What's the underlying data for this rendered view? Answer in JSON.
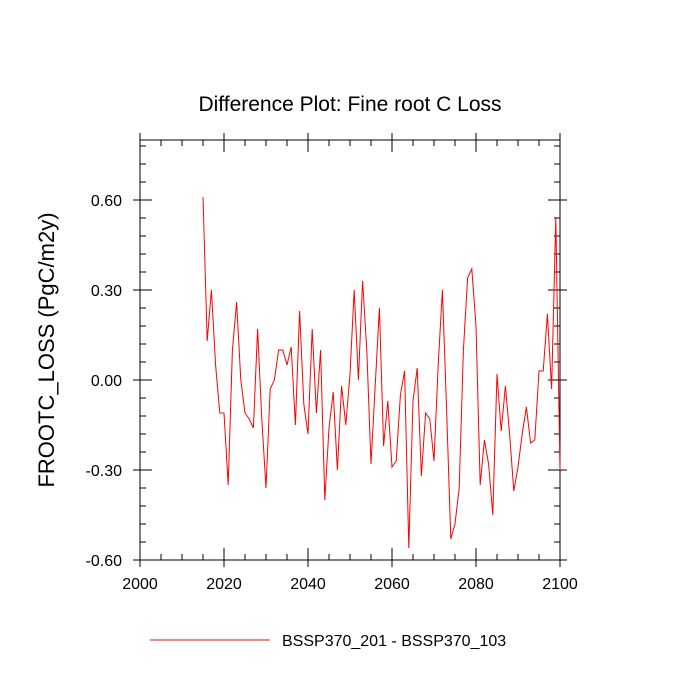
{
  "chart_data": {
    "type": "line",
    "title": "Difference Plot: Fine root C Loss",
    "xlabel": "",
    "ylabel": "FROOTC_LOSS  (PgC/m2y)",
    "xlim": [
      2000,
      2100
    ],
    "ylim": [
      -0.6,
      0.8
    ],
    "x_ticks": [
      2000,
      2020,
      2040,
      2060,
      2080,
      2100
    ],
    "x_tick_labels": [
      "2000",
      "2020",
      "2040",
      "2060",
      "2080",
      "2100"
    ],
    "y_ticks": [
      -0.6,
      -0.3,
      0.0,
      0.3,
      0.6
    ],
    "y_tick_labels": [
      "-0.60",
      "-0.30",
      "0.00",
      "0.30",
      "0.60"
    ],
    "grid": false,
    "legend_position": "bottom",
    "series": [
      {
        "name": "BSSP370_201 - BSSP370_103",
        "color": "#ff0000",
        "x": [
          2015,
          2016,
          2017,
          2018,
          2019,
          2020,
          2021,
          2022,
          2023,
          2024,
          2025,
          2026,
          2027,
          2028,
          2029,
          2030,
          2031,
          2032,
          2033,
          2034,
          2035,
          2036,
          2037,
          2038,
          2039,
          2040,
          2041,
          2042,
          2043,
          2044,
          2045,
          2046,
          2047,
          2048,
          2049,
          2050,
          2051,
          2052,
          2053,
          2054,
          2055,
          2056,
          2057,
          2058,
          2059,
          2060,
          2061,
          2062,
          2063,
          2064,
          2065,
          2066,
          2067,
          2068,
          2069,
          2070,
          2071,
          2072,
          2073,
          2074,
          2075,
          2076,
          2077,
          2078,
          2079,
          2080,
          2081,
          2082,
          2083,
          2084,
          2085,
          2086,
          2087,
          2088,
          2089,
          2090,
          2091,
          2092,
          2093,
          2094,
          2095,
          2096,
          2097,
          2098,
          2099,
          2100
        ],
        "y": [
          0.61,
          0.13,
          0.3,
          0.05,
          -0.11,
          -0.11,
          -0.35,
          0.1,
          0.26,
          0.0,
          -0.11,
          -0.13,
          -0.16,
          0.17,
          -0.13,
          -0.36,
          -0.03,
          0.0,
          0.1,
          0.1,
          0.05,
          0.11,
          -0.15,
          0.23,
          -0.08,
          -0.18,
          0.17,
          -0.11,
          0.1,
          -0.4,
          -0.16,
          -0.04,
          -0.3,
          -0.02,
          -0.15,
          0.02,
          0.3,
          0.0,
          0.33,
          0.1,
          -0.28,
          -0.02,
          0.24,
          -0.22,
          -0.07,
          -0.29,
          -0.27,
          -0.05,
          0.03,
          -0.56,
          -0.07,
          0.04,
          -0.32,
          -0.11,
          -0.13,
          -0.27,
          0.05,
          0.3,
          -0.1,
          -0.53,
          -0.48,
          -0.36,
          0.1,
          0.34,
          0.37,
          0.18,
          -0.35,
          -0.2,
          -0.28,
          -0.45,
          0.02,
          -0.17,
          -0.02,
          -0.18,
          -0.37,
          -0.29,
          -0.18,
          -0.09,
          -0.21,
          -0.2,
          0.03,
          0.03,
          0.22,
          -0.03,
          0.54,
          -0.3
        ]
      }
    ]
  }
}
